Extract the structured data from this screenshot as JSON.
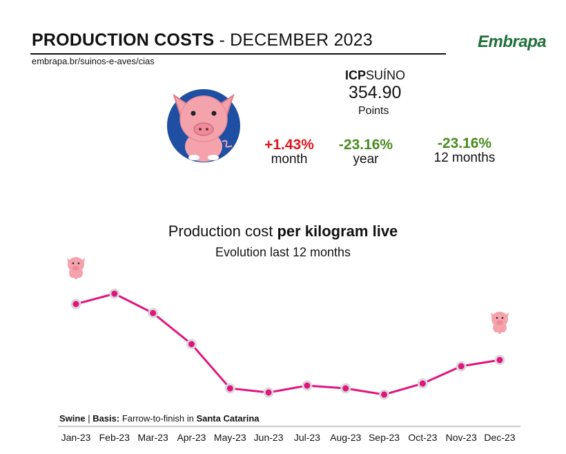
{
  "header": {
    "title_bold": "PRODUCTION COSTS",
    "title_rest": " - DECEMBER 2023",
    "source_url": "embrapa.br/suinos-e-aves/cias",
    "logo_text": "Embrapa"
  },
  "index": {
    "name_bold": "ICP",
    "name_rest": "SUÍNO",
    "value": "354.90",
    "unit": "Points"
  },
  "stats": [
    {
      "value": "+1.43%",
      "label": "month",
      "color": "#e0141c"
    },
    {
      "value": "-23.16%",
      "label": "year",
      "color": "#4a8a1f"
    },
    {
      "value": "-23.16%",
      "label": "12 months",
      "color": "#4a8a1f"
    }
  ],
  "chart_text": {
    "title_plain": "Production cost ",
    "title_bold": "per kilogram live",
    "subtitle": "Evolution last 12 months"
  },
  "basis": {
    "label1": "Swine",
    "sep": " | ",
    "label2": "Basis:",
    "text": " Farrow-to-finish in ",
    "region": "Santa Catarina"
  },
  "colors": {
    "line": "#e0157e",
    "marker_outline": "#d9d9d9",
    "pig_body": "#f4a3ad",
    "badge": "#1e4fa3"
  },
  "icons": [
    "pig-badge-icon",
    "small-pig-icon"
  ],
  "chart_data": {
    "type": "line",
    "categories": [
      "Jan-23",
      "Feb-23",
      "Mar-23",
      "Apr-23",
      "May-23",
      "Jun-23",
      "Jul-23",
      "Aug-23",
      "Sep-23",
      "Oct-23",
      "Nov-23",
      "Dec-23"
    ],
    "values": [
      440,
      425,
      453,
      498,
      562,
      568,
      558,
      562,
      571,
      555,
      530,
      521
    ],
    "value_note": "relative values read from an unlabeled y-axis (higher number = lower on chart is inverted here: smaller = higher cost)",
    "title": "Production cost per kilogram live",
    "subtitle": "Evolution last 12 months",
    "xlabel": "",
    "ylabel": "",
    "grid": false,
    "legend": "none"
  }
}
